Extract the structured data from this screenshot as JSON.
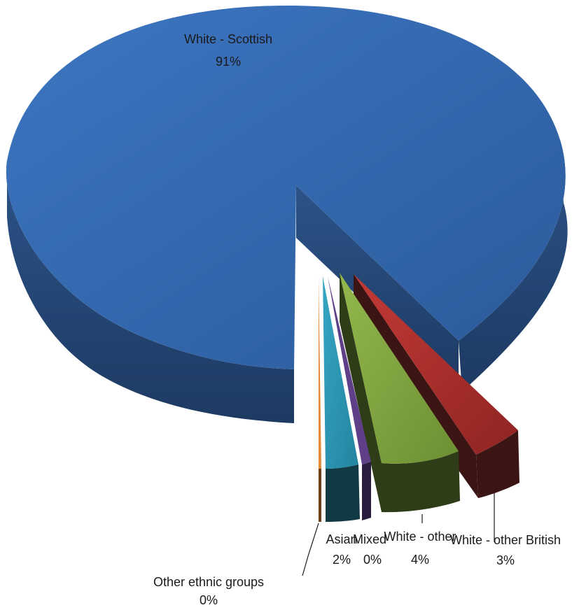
{
  "chart_data": {
    "type": "pie",
    "style": "3d-exploded",
    "title": "",
    "series": [
      {
        "values": [
          91,
          3,
          4,
          0,
          2,
          0
        ],
        "labels": [
          "White - Scottish",
          "White - other British",
          "White - other",
          "Mixed",
          "Asian",
          "Other ethnic groups"
        ],
        "percent_labels": [
          "91%",
          "3%",
          "4%",
          "0%",
          "2%",
          "0%"
        ]
      }
    ],
    "colors": {
      "white_scottish": "#3264a8",
      "white_other_british": "#a42b28",
      "white_other": "#7ba03c",
      "mixed": "#5e3f88",
      "asian": "#2b95b2",
      "other_ethnic_groups": "#e58a34"
    },
    "legend": "none (data labels with leader lines)"
  }
}
